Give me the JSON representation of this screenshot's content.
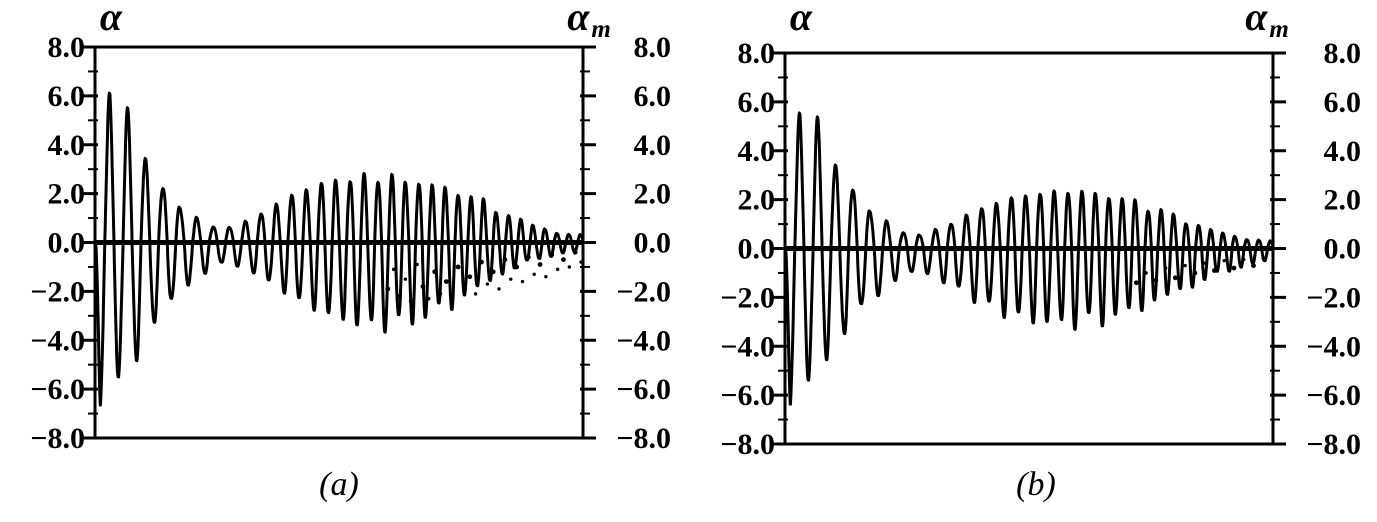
{
  "figure": {
    "background": "#ffffff",
    "ink_color": "#000000"
  },
  "chart_data": [
    {
      "type": "line",
      "panel": "a",
      "caption": "(a)",
      "title": "",
      "xlabel": "",
      "ylim": [
        -8,
        8
      ],
      "tick_step": 2.0,
      "grid": false,
      "legend": "none",
      "left_axis": {
        "label": "α",
        "tick_values": [
          8,
          6,
          4,
          2,
          0,
          -2,
          -4,
          -6,
          -8
        ],
        "tick_labels": [
          "8.0",
          "6.0",
          "4.0",
          "2.0",
          "0.0",
          "−2.0",
          "−4.0",
          "−6.0",
          "−8.0"
        ]
      },
      "right_axis": {
        "label": "α",
        "label_sub": "m",
        "tick_values": [
          8,
          6,
          4,
          2,
          0,
          -2,
          -4,
          -6,
          -8
        ],
        "tick_labels": [
          "8.0",
          "6.0",
          "4.0",
          "2.0",
          "0.0",
          "−2.0",
          "−4.0",
          "−6.0",
          "−8.0"
        ]
      },
      "series": [
        {
          "name": "alpha-solid-trace",
          "style": "solid",
          "freq_base": 26,
          "freq_chirp": 16,
          "envelope_t": [
            0.0,
            0.01,
            0.03,
            0.055,
            0.08,
            0.105,
            0.13,
            0.155,
            0.18,
            0.21,
            0.24,
            0.27,
            0.3,
            0.34,
            0.38,
            0.42,
            0.46,
            0.5,
            0.54,
            0.58,
            0.62,
            0.66,
            0.7,
            0.74,
            0.78,
            0.82,
            0.86,
            0.9,
            0.94,
            0.97,
            1.0
          ],
          "envelope_upper": [
            0.2,
            2.0,
            6.1,
            5.5,
            4.7,
            3.3,
            2.4,
            2.0,
            1.4,
            0.9,
            0.7,
            0.6,
            0.8,
            1.2,
            1.7,
            2.1,
            2.4,
            2.55,
            2.65,
            2.7,
            2.6,
            2.45,
            2.3,
            2.1,
            1.8,
            1.4,
            1.0,
            0.7,
            0.45,
            0.35,
            0.3
          ],
          "envelope_lower": [
            -0.2,
            -6.4,
            -6.0,
            -5.2,
            -4.4,
            -4.2,
            -3.0,
            -2.4,
            -1.9,
            -1.4,
            -1.0,
            -0.8,
            -1.0,
            -1.4,
            -1.9,
            -2.4,
            -2.8,
            -3.1,
            -3.3,
            -3.4,
            -3.3,
            -3.1,
            -2.8,
            -2.4,
            -1.9,
            -1.4,
            -1.0,
            -0.7,
            -0.5,
            -0.4,
            -0.35
          ]
        },
        {
          "name": "alpha-m-dotted-trace",
          "style": "dotted",
          "points": [
            [
              0.6,
              -1.9
            ],
            [
              0.612,
              -1.1
            ],
            [
              0.624,
              -2.2
            ],
            [
              0.636,
              -1.5
            ],
            [
              0.648,
              -2.4
            ],
            [
              0.66,
              -0.9
            ],
            [
              0.672,
              -1.8
            ],
            [
              0.684,
              -2.3
            ],
            [
              0.696,
              -1.2
            ],
            [
              0.708,
              -2.1
            ],
            [
              0.72,
              -1.6
            ],
            [
              0.732,
              -2.3
            ],
            [
              0.744,
              -1.0
            ],
            [
              0.756,
              -1.9
            ],
            [
              0.768,
              -1.4
            ],
            [
              0.78,
              -2.1
            ],
            [
              0.792,
              -0.8
            ],
            [
              0.804,
              -1.7
            ],
            [
              0.816,
              -1.2
            ],
            [
              0.828,
              -1.9
            ],
            [
              0.84,
              -0.7
            ],
            [
              0.852,
              -1.5
            ],
            [
              0.864,
              -1.0
            ],
            [
              0.876,
              -1.6
            ],
            [
              0.888,
              -0.6
            ],
            [
              0.9,
              -1.3
            ],
            [
              0.912,
              -0.9
            ],
            [
              0.924,
              -1.4
            ],
            [
              0.936,
              -0.5
            ],
            [
              0.948,
              -1.1
            ],
            [
              0.96,
              -0.7
            ],
            [
              0.972,
              -1.0
            ],
            [
              0.984,
              -0.4
            ],
            [
              0.996,
              -0.8
            ]
          ]
        }
      ]
    },
    {
      "type": "line",
      "panel": "b",
      "caption": "(b)",
      "title": "",
      "xlabel": "",
      "ylim": [
        -8,
        8
      ],
      "tick_step": 2.0,
      "grid": false,
      "legend": "none",
      "left_axis": {
        "label": "α",
        "tick_values": [
          8,
          6,
          4,
          2,
          0,
          -2,
          -4,
          -6,
          -8
        ],
        "tick_labels": [
          "8.0",
          "6.0",
          "4.0",
          "2.0",
          "0.0",
          "−2.0",
          "−4.0",
          "−6.0",
          "−8.0"
        ]
      },
      "right_axis": {
        "label": "α",
        "label_sub": "m",
        "tick_values": [
          8,
          6,
          4,
          2,
          0,
          -2,
          -4,
          -6,
          -8
        ],
        "tick_labels": [
          "8.0",
          "6.0",
          "4.0",
          "2.0",
          "0.0",
          "−2.0",
          "−4.0",
          "−6.0",
          "−8.0"
        ]
      },
      "series": [
        {
          "name": "alpha-solid-trace",
          "style": "solid",
          "freq_base": 26,
          "freq_chirp": 16,
          "envelope_t": [
            0.0,
            0.01,
            0.03,
            0.055,
            0.08,
            0.105,
            0.13,
            0.155,
            0.18,
            0.21,
            0.24,
            0.27,
            0.3,
            0.34,
            0.38,
            0.42,
            0.46,
            0.5,
            0.54,
            0.58,
            0.62,
            0.66,
            0.7,
            0.74,
            0.78,
            0.82,
            0.86,
            0.9,
            0.94,
            0.97,
            1.0
          ],
          "envelope_upper": [
            0.2,
            1.8,
            5.8,
            5.2,
            4.4,
            3.4,
            2.6,
            2.1,
            1.5,
            1.0,
            0.7,
            0.55,
            0.7,
            1.05,
            1.45,
            1.8,
            2.05,
            2.2,
            2.3,
            2.35,
            2.3,
            2.15,
            2.0,
            1.75,
            1.45,
            1.15,
            0.85,
            0.6,
            0.45,
            0.35,
            0.3
          ],
          "envelope_lower": [
            -0.2,
            -6.1,
            -5.8,
            -5.0,
            -4.3,
            -4.0,
            -3.2,
            -2.5,
            -2.0,
            -1.5,
            -1.1,
            -0.9,
            -1.1,
            -1.5,
            -1.95,
            -2.4,
            -2.7,
            -2.9,
            -3.0,
            -3.05,
            -3.0,
            -2.85,
            -2.6,
            -2.3,
            -1.95,
            -1.6,
            -1.25,
            -0.95,
            -0.7,
            -0.55,
            -0.45
          ]
        },
        {
          "name": "alpha-m-dotted-trace",
          "style": "dotted",
          "points": [
            [
              0.72,
              -1.4
            ],
            [
              0.74,
              -1.0
            ],
            [
              0.76,
              -1.3
            ],
            [
              0.78,
              -0.8
            ],
            [
              0.8,
              -1.2
            ],
            [
              0.82,
              -0.7
            ],
            [
              0.84,
              -1.0
            ],
            [
              0.86,
              -0.6
            ],
            [
              0.88,
              -0.9
            ],
            [
              0.9,
              -0.5
            ],
            [
              0.92,
              -0.8
            ],
            [
              0.94,
              -0.45
            ],
            [
              0.96,
              -0.7
            ],
            [
              0.98,
              -0.4
            ]
          ]
        }
      ]
    }
  ]
}
